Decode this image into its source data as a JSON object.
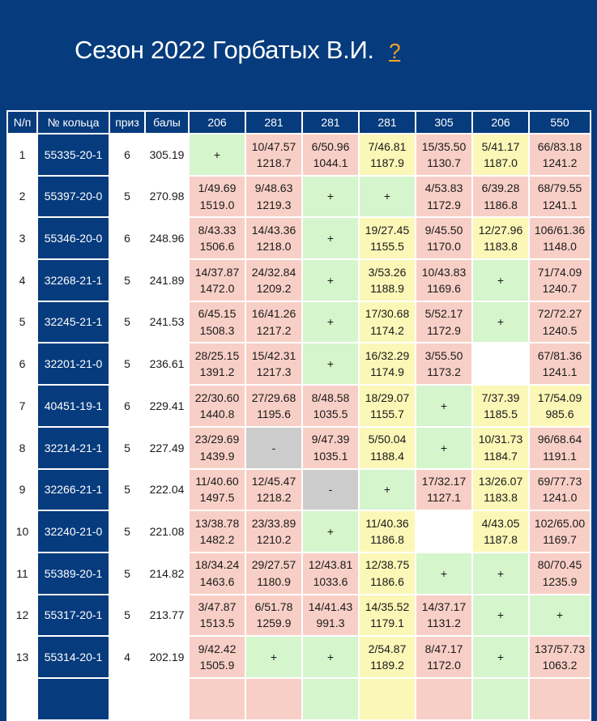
{
  "page": {
    "title": "Сезон 2022 Горбатых В.И.",
    "help_label": "?"
  },
  "table": {
    "headers": [
      "N/п",
      "№ кольца",
      "приз",
      "балы",
      "206",
      "281",
      "281",
      "281",
      "305",
      "206",
      "550"
    ],
    "rows": [
      {
        "n": "1",
        "ring": "55335-20-1",
        "priz": "6",
        "bal": "305.19",
        "races": [
          {
            "c": "green",
            "a": "+",
            "b": ""
          },
          {
            "c": "red",
            "a": "10/47.57",
            "b": "1218.7"
          },
          {
            "c": "red",
            "a": "6/50.96",
            "b": "1044.1"
          },
          {
            "c": "yellow",
            "a": "7/46.81",
            "b": "1187.9"
          },
          {
            "c": "red",
            "a": "15/35.50",
            "b": "1130.7"
          },
          {
            "c": "yellow",
            "a": "5/41.17",
            "b": "1187.0"
          },
          {
            "c": "red",
            "a": "66/83.18",
            "b": "1241.2"
          }
        ]
      },
      {
        "n": "2",
        "ring": "55397-20-0",
        "priz": "5",
        "bal": "270.98",
        "races": [
          {
            "c": "red",
            "a": "1/49.69",
            "b": "1519.0"
          },
          {
            "c": "red",
            "a": "9/48.63",
            "b": "1219.3"
          },
          {
            "c": "green",
            "a": "+",
            "b": ""
          },
          {
            "c": "green",
            "a": "+",
            "b": ""
          },
          {
            "c": "red",
            "a": "4/53.83",
            "b": "1172.9"
          },
          {
            "c": "red",
            "a": "6/39.28",
            "b": "1186.8"
          },
          {
            "c": "red",
            "a": "68/79.55",
            "b": "1241.1"
          }
        ]
      },
      {
        "n": "3",
        "ring": "55346-20-0",
        "priz": "6",
        "bal": "248.96",
        "races": [
          {
            "c": "red",
            "a": "8/43.33",
            "b": "1506.6"
          },
          {
            "c": "red",
            "a": "14/43.36",
            "b": "1218.0"
          },
          {
            "c": "green",
            "a": "+",
            "b": ""
          },
          {
            "c": "yellow",
            "a": "19/27.45",
            "b": "1155.5"
          },
          {
            "c": "red",
            "a": "9/45.50",
            "b": "1170.0"
          },
          {
            "c": "yellow",
            "a": "12/27.96",
            "b": "1183.8"
          },
          {
            "c": "red",
            "a": "106/61.36",
            "b": "1148.0"
          }
        ]
      },
      {
        "n": "4",
        "ring": "32268-21-1",
        "priz": "5",
        "bal": "241.89",
        "races": [
          {
            "c": "red",
            "a": "14/37.87",
            "b": "1472.0"
          },
          {
            "c": "red",
            "a": "24/32.84",
            "b": "1209.2"
          },
          {
            "c": "green",
            "a": "+",
            "b": ""
          },
          {
            "c": "yellow",
            "a": "3/53.26",
            "b": "1188.9"
          },
          {
            "c": "red",
            "a": "10/43.83",
            "b": "1169.6"
          },
          {
            "c": "green",
            "a": "+",
            "b": ""
          },
          {
            "c": "red",
            "a": "71/74.09",
            "b": "1240.7"
          }
        ]
      },
      {
        "n": "5",
        "ring": "32245-21-1",
        "priz": "5",
        "bal": "241.53",
        "races": [
          {
            "c": "red",
            "a": "6/45.15",
            "b": "1508.3"
          },
          {
            "c": "red",
            "a": "16/41.26",
            "b": "1217.2"
          },
          {
            "c": "green",
            "a": "+",
            "b": ""
          },
          {
            "c": "yellow",
            "a": "17/30.68",
            "b": "1174.2"
          },
          {
            "c": "red",
            "a": "5/52.17",
            "b": "1172.9"
          },
          {
            "c": "green",
            "a": "+",
            "b": ""
          },
          {
            "c": "red",
            "a": "72/72.27",
            "b": "1240.5"
          }
        ]
      },
      {
        "n": "6",
        "ring": "32201-21-0",
        "priz": "5",
        "bal": "236.61",
        "races": [
          {
            "c": "red",
            "a": "28/25.15",
            "b": "1391.2"
          },
          {
            "c": "red",
            "a": "15/42.31",
            "b": "1217.3"
          },
          {
            "c": "green",
            "a": "+",
            "b": ""
          },
          {
            "c": "yellow",
            "a": "16/32.29",
            "b": "1174.9"
          },
          {
            "c": "red",
            "a": "3/55.50",
            "b": "1173.2"
          },
          {
            "c": "blank",
            "a": "",
            "b": ""
          },
          {
            "c": "red",
            "a": "67/81.36",
            "b": "1241.1"
          }
        ]
      },
      {
        "n": "7",
        "ring": "40451-19-1",
        "priz": "6",
        "bal": "229.41",
        "races": [
          {
            "c": "red",
            "a": "22/30.60",
            "b": "1440.8"
          },
          {
            "c": "red",
            "a": "27/29.68",
            "b": "1195.6"
          },
          {
            "c": "red",
            "a": "8/48.58",
            "b": "1035.5"
          },
          {
            "c": "yellow",
            "a": "18/29.07",
            "b": "1155.7"
          },
          {
            "c": "green",
            "a": "+",
            "b": ""
          },
          {
            "c": "yellow",
            "a": "7/37.39",
            "b": "1185.5"
          },
          {
            "c": "yellow",
            "a": "17/54.09",
            "b": "985.6"
          }
        ]
      },
      {
        "n": "8",
        "ring": "32214-21-1",
        "priz": "5",
        "bal": "227.49",
        "races": [
          {
            "c": "red",
            "a": "23/29.69",
            "b": "1439.9"
          },
          {
            "c": "gray",
            "a": "-",
            "b": ""
          },
          {
            "c": "red",
            "a": "9/47.39",
            "b": "1035.1"
          },
          {
            "c": "yellow",
            "a": "5/50.04",
            "b": "1188.4"
          },
          {
            "c": "green",
            "a": "+",
            "b": ""
          },
          {
            "c": "yellow",
            "a": "10/31.73",
            "b": "1184.7"
          },
          {
            "c": "red",
            "a": "96/68.64",
            "b": "1191.1"
          }
        ]
      },
      {
        "n": "9",
        "ring": "32266-21-1",
        "priz": "5",
        "bal": "222.04",
        "races": [
          {
            "c": "red",
            "a": "11/40.60",
            "b": "1497.5"
          },
          {
            "c": "red",
            "a": "12/45.47",
            "b": "1218.2"
          },
          {
            "c": "gray",
            "a": "-",
            "b": ""
          },
          {
            "c": "green",
            "a": "+",
            "b": ""
          },
          {
            "c": "red",
            "a": "17/32.17",
            "b": "1127.1"
          },
          {
            "c": "yellow",
            "a": "13/26.07",
            "b": "1183.8"
          },
          {
            "c": "red",
            "a": "69/77.73",
            "b": "1241.0"
          }
        ]
      },
      {
        "n": "10",
        "ring": "32240-21-0",
        "priz": "5",
        "bal": "221.08",
        "races": [
          {
            "c": "red",
            "a": "13/38.78",
            "b": "1482.2"
          },
          {
            "c": "red",
            "a": "23/33.89",
            "b": "1210.2"
          },
          {
            "c": "green",
            "a": "+",
            "b": ""
          },
          {
            "c": "yellow",
            "a": "11/40.36",
            "b": "1186.8"
          },
          {
            "c": "blank",
            "a": "",
            "b": ""
          },
          {
            "c": "yellow",
            "a": "4/43.05",
            "b": "1187.8"
          },
          {
            "c": "red",
            "a": "102/65.00",
            "b": "1169.7"
          }
        ]
      },
      {
        "n": "11",
        "ring": "55389-20-1",
        "priz": "5",
        "bal": "214.82",
        "races": [
          {
            "c": "red",
            "a": "18/34.24",
            "b": "1463.6"
          },
          {
            "c": "red",
            "a": "29/27.57",
            "b": "1180.9"
          },
          {
            "c": "red",
            "a": "12/43.81",
            "b": "1033.6"
          },
          {
            "c": "yellow",
            "a": "12/38.75",
            "b": "1186.6"
          },
          {
            "c": "green",
            "a": "+",
            "b": ""
          },
          {
            "c": "green",
            "a": "+",
            "b": ""
          },
          {
            "c": "red",
            "a": "80/70.45",
            "b": "1235.9"
          }
        ]
      },
      {
        "n": "12",
        "ring": "55317-20-1",
        "priz": "5",
        "bal": "213.77",
        "races": [
          {
            "c": "red",
            "a": "3/47.87",
            "b": "1513.5"
          },
          {
            "c": "red",
            "a": "6/51.78",
            "b": "1259.9"
          },
          {
            "c": "red",
            "a": "14/41.43",
            "b": "991.3"
          },
          {
            "c": "yellow",
            "a": "14/35.52",
            "b": "1179.1"
          },
          {
            "c": "red",
            "a": "14/37.17",
            "b": "1131.2"
          },
          {
            "c": "green",
            "a": "+",
            "b": ""
          },
          {
            "c": "green",
            "a": "+",
            "b": ""
          }
        ]
      },
      {
        "n": "13",
        "ring": "55314-20-1",
        "priz": "4",
        "bal": "202.19",
        "races": [
          {
            "c": "red",
            "a": "9/42.42",
            "b": "1505.9"
          },
          {
            "c": "green",
            "a": "+",
            "b": ""
          },
          {
            "c": "green",
            "a": "+",
            "b": ""
          },
          {
            "c": "yellow",
            "a": "2/54.87",
            "b": "1189.2"
          },
          {
            "c": "red",
            "a": "8/47.17",
            "b": "1172.0"
          },
          {
            "c": "green",
            "a": "+",
            "b": ""
          },
          {
            "c": "red",
            "a": "137/57.73",
            "b": "1063.2"
          }
        ]
      },
      {
        "n": "",
        "ring": "",
        "priz": "",
        "bal": "",
        "races": [
          {
            "c": "red",
            "a": "",
            "b": ""
          },
          {
            "c": "red",
            "a": "",
            "b": ""
          },
          {
            "c": "green",
            "a": "",
            "b": ""
          },
          {
            "c": "yellow",
            "a": "",
            "b": ""
          },
          {
            "c": "red",
            "a": "",
            "b": ""
          },
          {
            "c": "green",
            "a": "",
            "b": ""
          },
          {
            "c": "red",
            "a": "",
            "b": ""
          }
        ]
      }
    ]
  }
}
